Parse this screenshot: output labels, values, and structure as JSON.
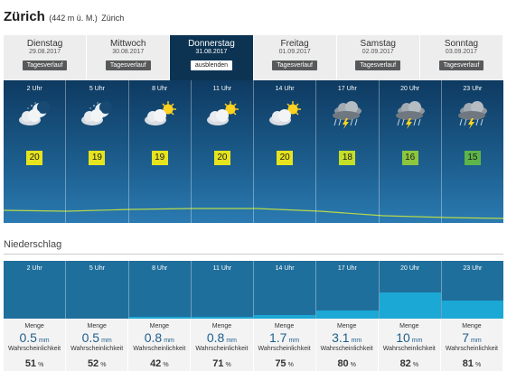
{
  "header": {
    "city": "Zürich",
    "altitude": "(442 m ü. M.)",
    "region": "Zürich"
  },
  "days": [
    {
      "name": "Dienstag",
      "date": "29.08.2017",
      "button": "Tagesverlauf",
      "active": false
    },
    {
      "name": "Mittwoch",
      "date": "30.08.2017",
      "button": "Tagesverlauf",
      "active": false
    },
    {
      "name": "Donnerstag",
      "date": "31.08.2017",
      "button": "ausblenden",
      "active": true
    },
    {
      "name": "Freitag",
      "date": "01.09.2017",
      "button": "Tagesverlauf",
      "active": false
    },
    {
      "name": "Samstag",
      "date": "02.09.2017",
      "button": "Tagesverlauf",
      "active": false
    },
    {
      "name": "Sonntag",
      "date": "03.09.2017",
      "button": "Tagesverlauf",
      "active": false
    }
  ],
  "forecast": [
    {
      "time": "2 Uhr",
      "icon": "moon-cloud-icon",
      "temp": "20",
      "temp_color": "#e6e41e"
    },
    {
      "time": "5 Uhr",
      "icon": "moon-cloud-icon",
      "temp": "19",
      "temp_color": "#e6e41e"
    },
    {
      "time": "8 Uhr",
      "icon": "sun-cloud-icon",
      "temp": "19",
      "temp_color": "#e6e41e"
    },
    {
      "time": "11 Uhr",
      "icon": "sun-cloud-icon",
      "temp": "20",
      "temp_color": "#e6e41e"
    },
    {
      "time": "14 Uhr",
      "icon": "sun-cloud-icon",
      "temp": "20",
      "temp_color": "#e6e41e"
    },
    {
      "time": "17 Uhr",
      "icon": "thunderstorm-icon",
      "temp": "18",
      "temp_color": "#c5de28"
    },
    {
      "time": "20 Uhr",
      "icon": "thunderstorm-icon",
      "temp": "16",
      "temp_color": "#8cc63f"
    },
    {
      "time": "23 Uhr",
      "icon": "thunderstorm-icon",
      "temp": "15",
      "temp_color": "#5db54a"
    }
  ],
  "precipitation": {
    "title": "Niederschlag",
    "amount_label": "Menge",
    "probability_label": "Wahrscheinlichkeit",
    "amount_unit": "mm",
    "probability_unit": "%",
    "slots": [
      {
        "time": "2 Uhr",
        "amount": "0.5",
        "probability": "51",
        "fill": 0.0
      },
      {
        "time": "5 Uhr",
        "amount": "0.5",
        "probability": "52",
        "fill": 0.0
      },
      {
        "time": "8 Uhr",
        "amount": "0.8",
        "probability": "42",
        "fill": 0.03
      },
      {
        "time": "11 Uhr",
        "amount": "0.8",
        "probability": "71",
        "fill": 0.03
      },
      {
        "time": "14 Uhr",
        "amount": "1.7",
        "probability": "75",
        "fill": 0.07
      },
      {
        "time": "17 Uhr",
        "amount": "3.1",
        "probability": "80",
        "fill": 0.14
      },
      {
        "time": "20 Uhr",
        "amount": "10",
        "probability": "82",
        "fill": 0.45
      },
      {
        "time": "23 Uhr",
        "amount": "7",
        "probability": "81",
        "fill": 0.31
      }
    ]
  },
  "colors": {
    "active_tab": "#0d3352",
    "forecast_top": "#0e3a61",
    "precip_bg": "#1f6f9c",
    "precip_fill": "#1ba8d5",
    "trend_line": "#b7d94a"
  }
}
